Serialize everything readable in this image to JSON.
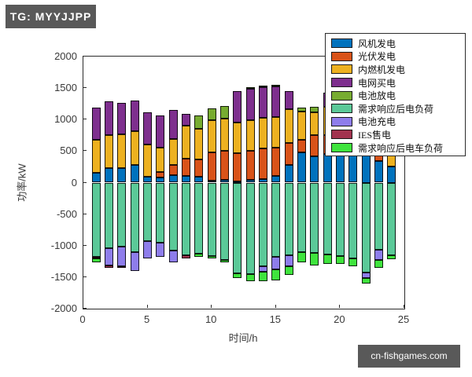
{
  "overlay": {
    "tag": "TG: MYYJJPP",
    "watermark": "cn-fishgames.com",
    "tag_bg_color": "#595959"
  },
  "chart_data": {
    "type": "bar",
    "variant": "stacked-mixed-sign",
    "title": "",
    "xlabel": "时间/h",
    "ylabel": "功率/kW",
    "xlim": [
      0,
      25
    ],
    "ylim": [
      -2000,
      2000
    ],
    "xticks": [
      0,
      5,
      10,
      15,
      20,
      25
    ],
    "yticks": [
      2000,
      1500,
      1000,
      500,
      0,
      -500,
      -1000,
      -1500,
      -2000
    ],
    "grid": false,
    "legend_position": "top-right",
    "x": [
      1,
      2,
      3,
      4,
      5,
      6,
      7,
      8,
      9,
      10,
      11,
      12,
      13,
      14,
      15,
      16,
      17,
      18,
      19,
      20,
      21,
      22,
      23,
      24
    ],
    "series": [
      {
        "name": "风机发电",
        "color": "#0072BD",
        "values": [
          150,
          230,
          230,
          280,
          95,
          75,
          115,
          105,
          95,
          30,
          40,
          20,
          40,
          60,
          100,
          285,
          475,
          420,
          450,
          430,
          480,
          500,
          340,
          250
        ]
      },
      {
        "name": "光伏发电",
        "color": "#D95319",
        "values": [
          0,
          0,
          0,
          0,
          0,
          90,
          160,
          275,
          270,
          450,
          465,
          450,
          470,
          485,
          455,
          345,
          210,
          330,
          300,
          320,
          250,
          200,
          150,
          0
        ]
      },
      {
        "name": "内燃机发电",
        "color": "#EDB120",
        "values": [
          530,
          520,
          540,
          530,
          515,
          390,
          420,
          525,
          485,
          505,
          505,
          480,
          480,
          485,
          485,
          535,
          445,
          370,
          450,
          450,
          450,
          450,
          480,
          480
        ]
      },
      {
        "name": "电网买电",
        "color": "#7E2F8E",
        "values": [
          510,
          540,
          500,
          490,
          510,
          505,
          455,
          185,
          0,
          0,
          0,
          500,
          500,
          480,
          490,
          290,
          0,
          0,
          230,
          230,
          270,
          250,
          330,
          460
        ]
      },
      {
        "name": "电池放电",
        "color": "#77AC30",
        "values": [
          0,
          0,
          0,
          0,
          0,
          0,
          0,
          0,
          210,
          190,
          200,
          0,
          20,
          25,
          20,
          0,
          65,
          80,
          0,
          0,
          0,
          0,
          0,
          0
        ]
      },
      {
        "name": "需求响应后电负荷",
        "color": "#5BC998",
        "values": [
          -1180,
          -1040,
          -1010,
          -1100,
          -930,
          -950,
          -1080,
          -1150,
          -1130,
          -1165,
          -1225,
          -1435,
          -1455,
          -1330,
          -1180,
          -1150,
          -1100,
          -1120,
          -1140,
          -1165,
          -1205,
          -1430,
          -1060,
          -1150
        ]
      },
      {
        "name": "电池充电",
        "color": "#8E7DEB",
        "values": [
          0,
          -270,
          -315,
          -300,
          -270,
          -230,
          -190,
          0,
          0,
          0,
          0,
          0,
          0,
          -80,
          -200,
          -180,
          0,
          0,
          0,
          0,
          0,
          -80,
          -165,
          0
        ]
      },
      {
        "name": "IES售电",
        "color": "#A2334F",
        "values": [
          -20,
          -40,
          -20,
          0,
          0,
          0,
          0,
          -55,
          0,
          0,
          0,
          0,
          0,
          0,
          0,
          0,
          0,
          0,
          0,
          0,
          0,
          0,
          0,
          0
        ]
      },
      {
        "name": "需求响应后电车负荷",
        "color": "#3FE43D",
        "values": [
          -70,
          0,
          0,
          0,
          0,
          0,
          0,
          0,
          -45,
          -40,
          -40,
          -85,
          -105,
          -150,
          -170,
          -140,
          -165,
          -190,
          -145,
          -125,
          -125,
          -90,
          -125,
          -60
        ]
      }
    ]
  }
}
